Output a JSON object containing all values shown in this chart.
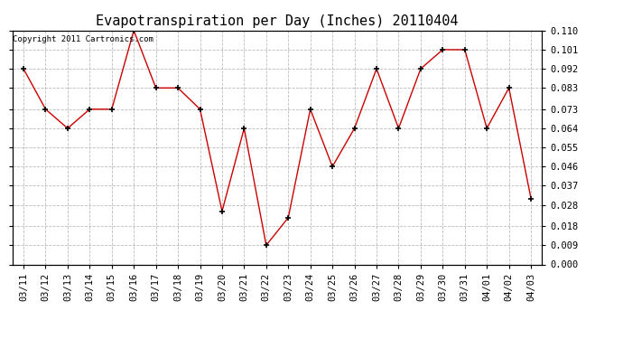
{
  "title": "Evapotranspiration per Day (Inches) 20110404",
  "copyright_text": "Copyright 2011 Cartronics.com",
  "dates": [
    "03/11",
    "03/12",
    "03/13",
    "03/14",
    "03/15",
    "03/16",
    "03/17",
    "03/18",
    "03/19",
    "03/20",
    "03/21",
    "03/22",
    "03/23",
    "03/24",
    "03/25",
    "03/26",
    "03/27",
    "03/28",
    "03/29",
    "03/30",
    "03/31",
    "04/01",
    "04/02",
    "04/03"
  ],
  "values": [
    0.092,
    0.073,
    0.064,
    0.073,
    0.073,
    0.11,
    0.083,
    0.083,
    0.073,
    0.025,
    0.064,
    0.009,
    0.022,
    0.073,
    0.046,
    0.064,
    0.092,
    0.064,
    0.092,
    0.101,
    0.101,
    0.064,
    0.083,
    0.031
  ],
  "line_color": "#cc0000",
  "marker": "+",
  "marker_size": 5,
  "marker_color": "#000000",
  "ylim": [
    0.0,
    0.11
  ],
  "yticks": [
    0.0,
    0.009,
    0.018,
    0.028,
    0.037,
    0.046,
    0.055,
    0.064,
    0.073,
    0.083,
    0.092,
    0.101,
    0.11
  ],
  "background_color": "#ffffff",
  "plot_bg_color": "#ffffff",
  "grid_color": "#bbbbbb",
  "title_fontsize": 11,
  "tick_fontsize": 7.5,
  "copyright_fontsize": 6.5
}
